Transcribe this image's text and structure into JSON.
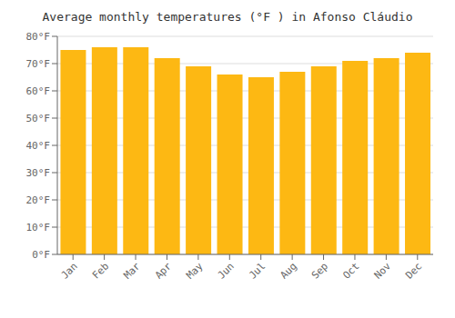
{
  "chart_data": {
    "type": "bar",
    "title": "Average monthly temperatures (°F ) in Afonso Cláudio",
    "categories": [
      "Jan",
      "Feb",
      "Mar",
      "Apr",
      "May",
      "Jun",
      "Jul",
      "Aug",
      "Sep",
      "Oct",
      "Nov",
      "Dec"
    ],
    "values": [
      75,
      76,
      76,
      72,
      69,
      66,
      65,
      67,
      69,
      71,
      72,
      74
    ],
    "color": "#FDB813",
    "ylim": [
      0,
      80
    ],
    "yticks": [
      {
        "value": 0,
        "label": "0°F"
      },
      {
        "value": 10,
        "label": "10°F"
      },
      {
        "value": 20,
        "label": "20°F"
      },
      {
        "value": 30,
        "label": "30°F"
      },
      {
        "value": 40,
        "label": "40°F"
      },
      {
        "value": 50,
        "label": "50°F"
      },
      {
        "value": 60,
        "label": "60°F"
      },
      {
        "value": 70,
        "label": "70°F"
      },
      {
        "value": 80,
        "label": "80°F"
      }
    ],
    "grid": true
  }
}
